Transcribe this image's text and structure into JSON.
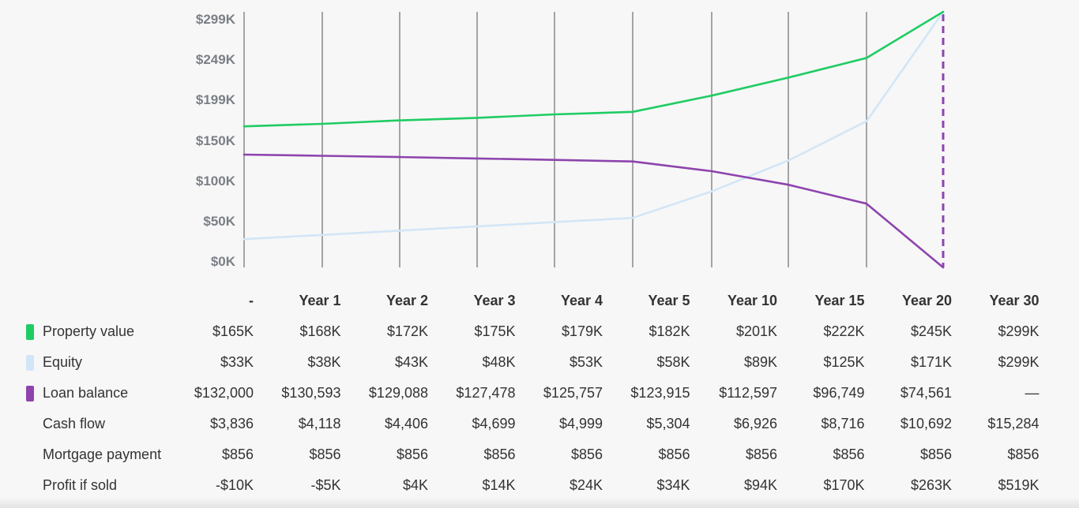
{
  "chart_data": {
    "type": "line",
    "categories": [
      "-",
      "Year 1",
      "Year 2",
      "Year 3",
      "Year 4",
      "Year 5",
      "Year 10",
      "Year 15",
      "Year 20",
      "Year 30"
    ],
    "y_ticks": [
      "$0K",
      "$50K",
      "$100K",
      "$150K",
      "$199K",
      "$249K",
      "$299K"
    ],
    "ylim": [
      0,
      299
    ],
    "grid": "vertical lines at each category",
    "series": [
      {
        "name": "Property value",
        "color": "#1fcc63",
        "values": [
          165,
          168,
          172,
          175,
          179,
          182,
          201,
          222,
          245,
          299
        ]
      },
      {
        "name": "Equity",
        "color": "#d3e6f7",
        "values": [
          33,
          38,
          43,
          48,
          53,
          58,
          89,
          125,
          171,
          299
        ]
      },
      {
        "name": "Loan balance",
        "color": "#8e44ad",
        "values": [
          132,
          130.593,
          129.088,
          127.478,
          125.757,
          123.915,
          112.597,
          96.749,
          74.561,
          0
        ]
      }
    ]
  },
  "table": {
    "headers": [
      "-",
      "Year 1",
      "Year 2",
      "Year 3",
      "Year 4",
      "Year 5",
      "Year 10",
      "Year 15",
      "Year 20",
      "Year 30"
    ],
    "rows": [
      {
        "label": "Property value",
        "swatch": "#1fcc63",
        "values": [
          "$165K",
          "$168K",
          "$172K",
          "$175K",
          "$179K",
          "$182K",
          "$201K",
          "$222K",
          "$245K",
          "$299K"
        ]
      },
      {
        "label": "Equity",
        "swatch": "#d3e6f7",
        "values": [
          "$33K",
          "$38K",
          "$43K",
          "$48K",
          "$53K",
          "$58K",
          "$89K",
          "$125K",
          "$171K",
          "$299K"
        ]
      },
      {
        "label": "Loan balance",
        "swatch": "#8e44ad",
        "values": [
          "$132,000",
          "$130,593",
          "$129,088",
          "$127,478",
          "$125,757",
          "$123,915",
          "$112,597",
          "$96,749",
          "$74,561",
          "—"
        ]
      },
      {
        "label": "Cash flow",
        "swatch": "",
        "values": [
          "$3,836",
          "$4,118",
          "$4,406",
          "$4,699",
          "$4,999",
          "$5,304",
          "$6,926",
          "$8,716",
          "$10,692",
          "$15,284"
        ]
      },
      {
        "label": "Mortgage payment",
        "swatch": "",
        "values": [
          "$856",
          "$856",
          "$856",
          "$856",
          "$856",
          "$856",
          "$856",
          "$856",
          "$856",
          "$856"
        ]
      },
      {
        "label": "Profit if sold",
        "swatch": "",
        "values": [
          "-$10K",
          "-$5K",
          "$4K",
          "$14K",
          "$24K",
          "$34K",
          "$94K",
          "$170K",
          "$263K",
          "$519K"
        ]
      }
    ]
  }
}
